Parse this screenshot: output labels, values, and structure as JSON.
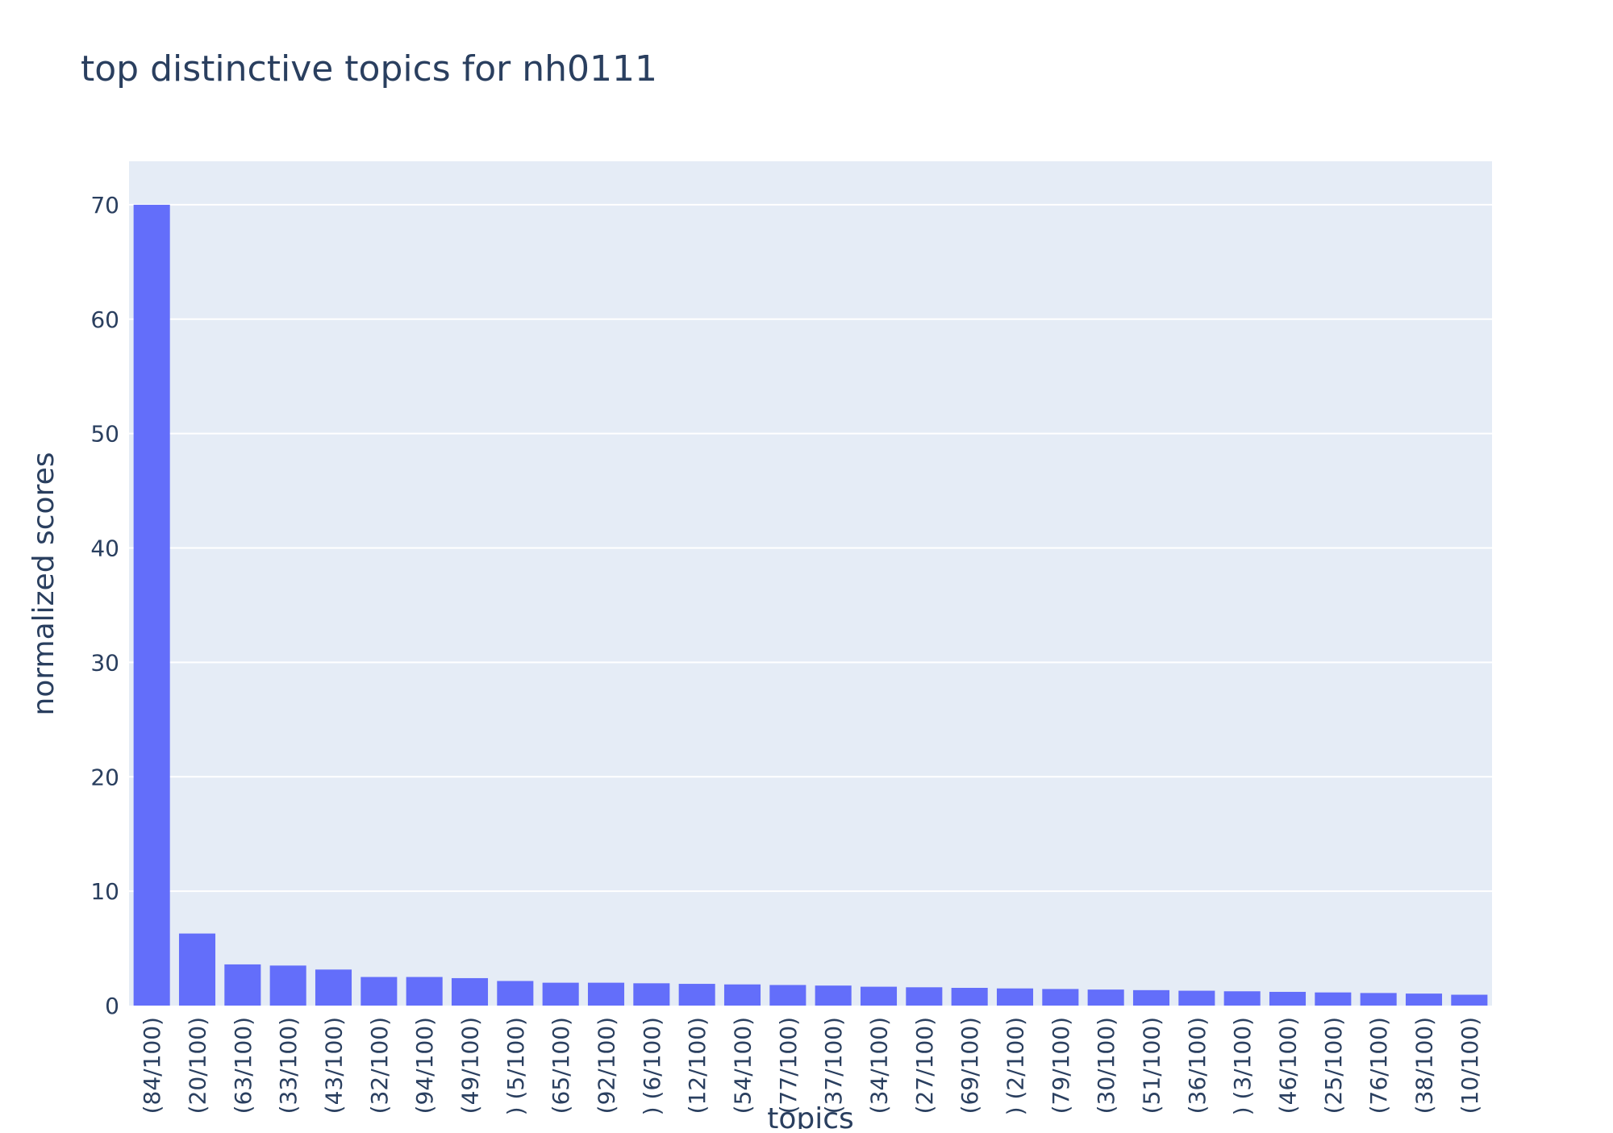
{
  "chart_data": {
    "type": "bar",
    "title": "top distinctive topics for nh0111",
    "xlabel": "topics",
    "ylabel": "normalized scores",
    "ylim": [
      0,
      73.8
    ],
    "y_ticks": [
      0,
      10,
      20,
      30,
      40,
      50,
      60,
      70
    ],
    "grid": true,
    "legend": "none",
    "categories": [
      "(84/100)",
      "(20/100)",
      "(63/100)",
      "(33/100)",
      "(43/100)",
      "(32/100)",
      "(94/100)",
      "(49/100)",
      ") (5/100)",
      "(65/100)",
      "(92/100)",
      ") (6/100)",
      "(12/100)",
      "(54/100)",
      "(77/100)",
      "(37/100)",
      "(34/100)",
      "(27/100)",
      "(69/100)",
      ") (2/100)",
      "(79/100)",
      "(30/100)",
      "(51/100)",
      "(36/100)",
      ") (3/100)",
      "(46/100)",
      "(25/100)",
      "(76/100)",
      "(38/100)",
      "(10/100)"
    ],
    "values": [
      70.0,
      6.3,
      3.6,
      3.5,
      3.15,
      2.5,
      2.5,
      2.4,
      2.15,
      2.0,
      2.0,
      1.95,
      1.9,
      1.85,
      1.8,
      1.75,
      1.65,
      1.6,
      1.55,
      1.5,
      1.45,
      1.4,
      1.35,
      1.3,
      1.25,
      1.2,
      1.15,
      1.1,
      1.05,
      0.95
    ],
    "colors": {
      "bar": "#636efa",
      "plot_bg": "#e5ecf6",
      "grid": "#ffffff",
      "text": "#2a3f5f"
    }
  }
}
